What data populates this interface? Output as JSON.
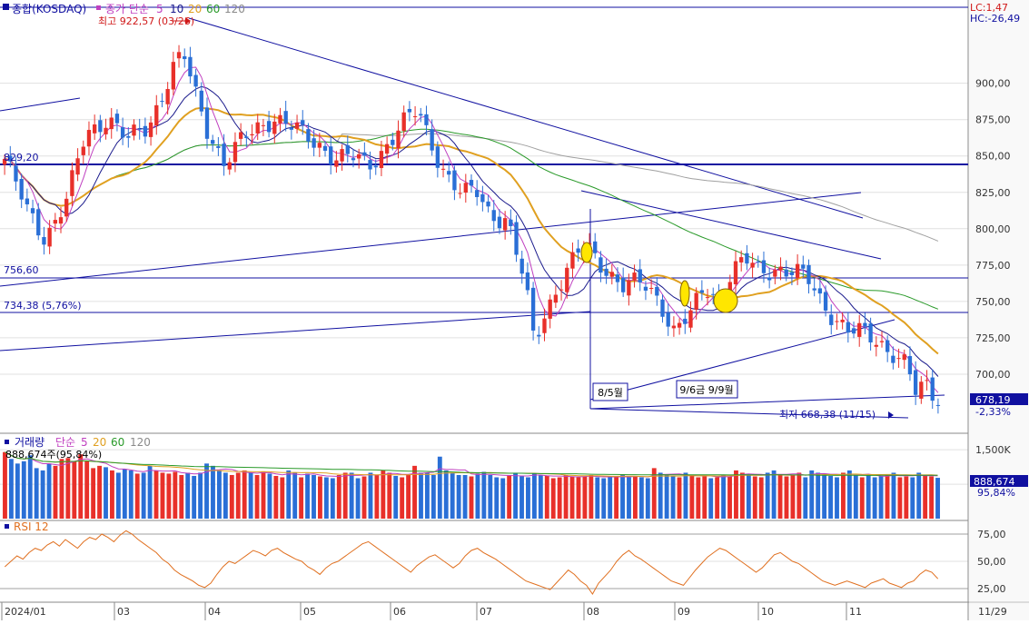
{
  "main": {
    "title": "종합(KOSDAQ)",
    "ma_prefix": "종가 단순",
    "ma_periods": [
      "5",
      "10",
      "20",
      "60",
      "120"
    ],
    "high_note": "최고 922,57 (03/26)",
    "low_note": "최저 668,38 (11/15)",
    "lc": "LC:1,47",
    "hc": "HC:-26,49",
    "last_price": "678,19",
    "change_pct": "-2,33%",
    "level_labels": [
      "829,20",
      "756,60",
      "734,38 (5,76%)"
    ],
    "annotations": [
      "8/5월",
      "9/6금 9/9월"
    ]
  },
  "volume": {
    "title": "거래량",
    "ma_prefix": "단순",
    "ma_periods": [
      "5",
      "20",
      "60",
      "120"
    ],
    "current": "888,674주(95,84%)",
    "last_value": "888,674",
    "last_pct": "95,84%"
  },
  "rsi": {
    "title": "RSI 12"
  },
  "colors": {
    "up": "#e8302a",
    "down": "#2a6fd6",
    "ma5": "#c040c0",
    "ma10": "#1a1a8c",
    "ma20": "#e0a020",
    "ma60": "#2a9a2a",
    "ma120": "#a0a0a0",
    "trend": "#1010a0",
    "rsi": "#e07020"
  },
  "chart_data": [
    {
      "type": "candlestick",
      "title": "종합(KOSDAQ)",
      "ylim": [
        664,
        1000
      ],
      "y_ticks": [
        700,
        725,
        750,
        775,
        800,
        825,
        850,
        875,
        900
      ],
      "x_labels": [
        "2024/01",
        "03",
        "04",
        "05",
        "06",
        "07",
        "08",
        "09",
        "10",
        "11",
        "11/29"
      ],
      "last_close": 678.19,
      "high": {
        "value": 922.57,
        "date": "03/26"
      },
      "low": {
        "value": 668.38,
        "date": "11/15"
      },
      "horizontal_levels": [
        829.2,
        756.6,
        734.38
      ],
      "close_path": [
        [
          0,
          848
        ],
        [
          10,
          812
        ],
        [
          18,
          795
        ],
        [
          28,
          820
        ],
        [
          36,
          864
        ],
        [
          46,
          878
        ],
        [
          55,
          860
        ],
        [
          64,
          870
        ],
        [
          70,
          893
        ],
        [
          76,
          914
        ],
        [
          80,
          918
        ],
        [
          84,
          896
        ],
        [
          90,
          870
        ],
        [
          98,
          846
        ],
        [
          106,
          860
        ],
        [
          112,
          868
        ],
        [
          120,
          878
        ],
        [
          128,
          870
        ],
        [
          134,
          862
        ],
        [
          140,
          858
        ],
        [
          148,
          850
        ],
        [
          156,
          848
        ],
        [
          162,
          842
        ],
        [
          170,
          858
        ],
        [
          176,
          870
        ],
        [
          184,
          880
        ],
        [
          190,
          860
        ],
        [
          196,
          840
        ],
        [
          204,
          822
        ],
        [
          210,
          826
        ],
        [
          216,
          812
        ],
        [
          224,
          806
        ],
        [
          232,
          760
        ],
        [
          236,
          722
        ],
        [
          240,
          740
        ],
        [
          246,
          760
        ],
        [
          252,
          774
        ],
        [
          258,
          788
        ],
        [
          264,
          780
        ],
        [
          270,
          770
        ],
        [
          276,
          760
        ],
        [
          284,
          762
        ],
        [
          292,
          752
        ],
        [
          298,
          730
        ],
        [
          306,
          740
        ],
        [
          312,
          760
        ],
        [
          318,
          752
        ],
        [
          324,
          770
        ],
        [
          330,
          778
        ],
        [
          336,
          770
        ],
        [
          344,
          774
        ],
        [
          352,
          770
        ],
        [
          358,
          764
        ],
        [
          364,
          750
        ],
        [
          370,
          740
        ],
        [
          376,
          730
        ],
        [
          384,
          726
        ],
        [
          390,
          722
        ],
        [
          396,
          716
        ],
        [
          402,
          706
        ],
        [
          406,
          686
        ],
        [
          412,
          692
        ],
        [
          416,
          678
        ]
      ]
    },
    {
      "type": "bar",
      "title": "거래량",
      "ylim": [
        0,
        1800
      ],
      "y_ticks": [
        1500,
        750
      ],
      "last_value": 888.674,
      "values_k": [
        1450,
        1300,
        1200,
        1250,
        1380,
        1100,
        1050,
        1200,
        1150,
        1300,
        1320,
        1250,
        1400,
        1250,
        1100,
        1150,
        1120,
        1050,
        1000,
        1080,
        1050,
        980,
        1000,
        1150,
        1050,
        1000,
        980,
        1020,
        950,
        1000,
        930,
        1000,
        1200,
        1150,
        1050,
        1000,
        950,
        1000,
        1050,
        1000,
        950,
        1020,
        980,
        930,
        900,
        1050,
        1000,
        900,
        980,
        950,
        920,
        900,
        880,
        950,
        1000,
        1000,
        880,
        920,
        1000,
        950,
        1050,
        1000,
        930,
        900,
        950,
        1150,
        1000,
        1000,
        950,
        1350,
        1050,
        1000,
        950,
        950,
        920,
        980,
        1020,
        950,
        900,
        880,
        950,
        1000,
        920,
        900,
        980,
        950,
        930,
        880,
        900,
        950,
        920,
        900,
        920,
        950,
        900,
        880,
        900,
        920,
        950,
        900,
        920,
        900,
        880,
        1100,
        1000,
        950,
        920,
        900,
        1000,
        950,
        900,
        920,
        880,
        900,
        950,
        920,
        1050,
        1000,
        950,
        920,
        900,
        1000,
        1050,
        950,
        920,
        950,
        1000,
        900,
        1050,
        1000,
        960,
        930,
        900,
        1000,
        1050,
        950,
        900,
        950,
        900,
        920,
        950,
        1000,
        900,
        920,
        900,
        1000,
        950,
        920,
        889
      ]
    },
    {
      "type": "line",
      "title": "RSI 12",
      "ylim": [
        15,
        85
      ],
      "y_ticks": [
        75,
        50,
        25
      ],
      "series": [
        {
          "values": [
            45,
            50,
            55,
            52,
            58,
            62,
            60,
            65,
            68,
            64,
            70,
            66,
            62,
            68,
            72,
            70,
            75,
            72,
            68,
            74,
            78,
            75,
            70,
            66,
            62,
            58,
            52,
            48,
            42,
            38,
            35,
            32,
            28,
            26,
            30,
            38,
            45,
            50,
            48,
            52,
            56,
            60,
            58,
            55,
            60,
            62,
            58,
            55,
            52,
            50,
            45,
            42,
            38,
            44,
            48,
            50,
            54,
            58,
            62,
            66,
            68,
            64,
            60,
            56,
            52,
            48,
            44,
            40,
            46,
            50,
            54,
            56,
            52,
            48,
            44,
            48,
            55,
            60,
            62,
            58,
            55,
            52,
            48,
            44,
            40,
            36,
            32,
            30,
            28,
            26,
            24,
            30,
            36,
            42,
            38,
            32,
            28,
            20,
            30,
            36,
            42,
            50,
            56,
            60,
            55,
            52,
            48,
            44,
            40,
            36,
            32,
            30,
            28,
            35,
            42,
            48,
            54,
            58,
            62,
            60,
            56,
            52,
            48,
            44,
            40,
            44,
            50,
            56,
            58,
            54,
            50,
            48,
            44,
            40,
            36,
            32,
            30,
            28,
            30,
            32,
            30,
            28,
            26,
            30,
            32,
            34,
            30,
            28,
            26,
            30,
            32,
            38,
            42,
            40,
            34
          ]
        }
      ]
    }
  ]
}
